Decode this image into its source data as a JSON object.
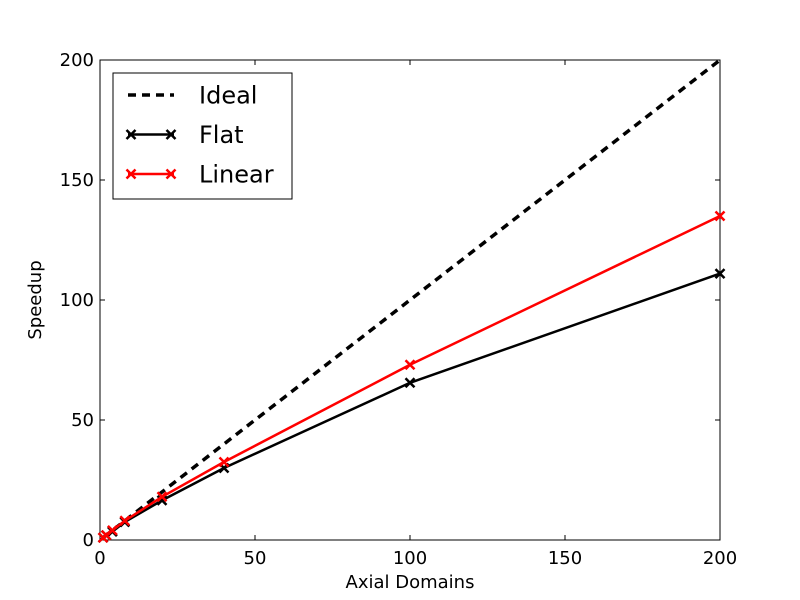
{
  "chart_data": {
    "type": "line",
    "title": "",
    "xlabel": "Axial Domains",
    "ylabel": "Speedup",
    "xlim": [
      0,
      200
    ],
    "ylim": [
      0,
      200
    ],
    "xticks": [
      "0",
      "50",
      "100",
      "150",
      "200"
    ],
    "yticks": [
      "0",
      "50",
      "100",
      "150",
      "200"
    ],
    "xtick_values": [
      0,
      50,
      100,
      150,
      200
    ],
    "ytick_values": [
      0,
      50,
      100,
      150,
      200
    ],
    "grid": false,
    "legend_position": "top-left",
    "series": [
      {
        "name": "Ideal",
        "color": "#000000",
        "line_style": "dashed",
        "marker": "none",
        "x": [
          1,
          200
        ],
        "y": [
          1,
          200
        ]
      },
      {
        "name": "Flat",
        "color": "#000000",
        "line_style": "solid",
        "marker": "x",
        "x": [
          1,
          2,
          4,
          8,
          20,
          40,
          100,
          200
        ],
        "y": [
          1,
          2,
          3.5,
          7.5,
          16.5,
          30,
          65.5,
          111
        ]
      },
      {
        "name": "Linear",
        "color": "#ff0000",
        "line_style": "solid",
        "marker": "x",
        "x": [
          1,
          2,
          4,
          8,
          20,
          40,
          100,
          200
        ],
        "y": [
          1,
          2,
          4,
          8,
          18,
          32.5,
          73,
          135
        ]
      }
    ]
  }
}
